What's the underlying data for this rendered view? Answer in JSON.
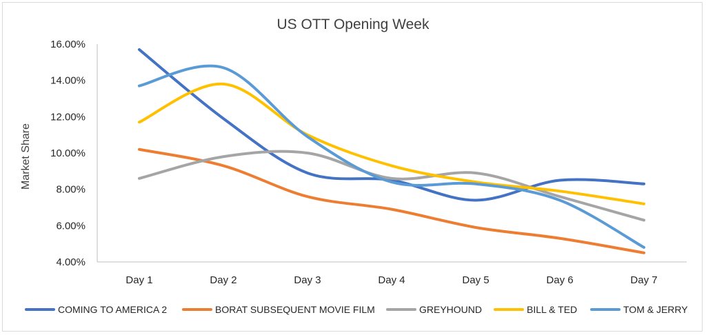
{
  "chart_data": {
    "type": "line",
    "title": "US OTT Opening  Week",
    "xlabel": "",
    "ylabel": "Market Share",
    "categories": [
      "Day 1",
      "Day 2",
      "Day 3",
      "Day 4",
      "Day 5",
      "Day 6",
      "Day 7"
    ],
    "ylim": [
      4,
      16
    ],
    "yticks": [
      "4.00%",
      "6.00%",
      "8.00%",
      "10.00%",
      "12.00%",
      "14.00%",
      "16.00%"
    ],
    "grid": false,
    "legend_position": "bottom",
    "series": [
      {
        "name": "COMING TO AMERICA 2",
        "color": "#4472c4",
        "values": [
          15.7,
          11.9,
          8.9,
          8.5,
          7.4,
          8.5,
          8.3
        ]
      },
      {
        "name": "BORAT SUBSEQUENT MOVIE FILM",
        "color": "#ed7d31",
        "values": [
          10.2,
          9.3,
          7.6,
          6.9,
          5.9,
          5.3,
          4.5
        ]
      },
      {
        "name": "GREYHOUND",
        "color": "#a5a5a5",
        "values": [
          8.6,
          9.8,
          10.0,
          8.6,
          8.9,
          7.6,
          6.3
        ]
      },
      {
        "name": "BILL & TED",
        "color": "#ffc000",
        "values": [
          11.7,
          13.8,
          11.0,
          9.3,
          8.4,
          7.9,
          7.2
        ]
      },
      {
        "name": "TOM & JERRY",
        "color": "#5b9bd5",
        "values": [
          13.7,
          14.7,
          10.9,
          8.4,
          8.3,
          7.4,
          4.8
        ]
      }
    ]
  }
}
